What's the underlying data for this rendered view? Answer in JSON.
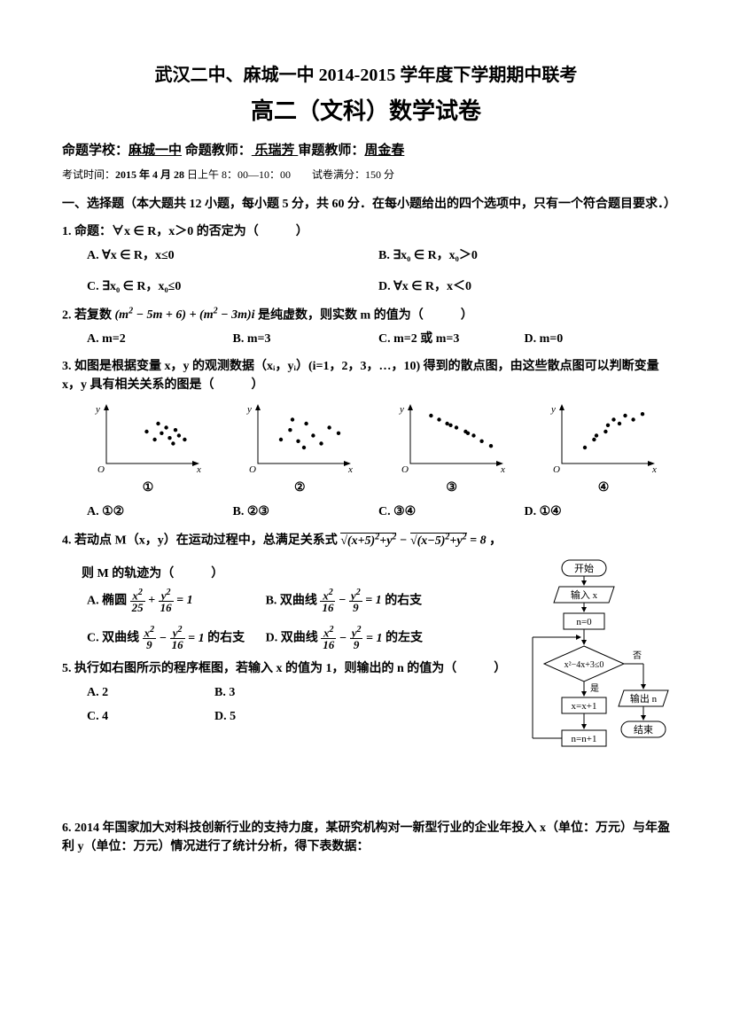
{
  "title_line1": "武汉二中、麻城一中 2014-2015 学年度下学期期中联考",
  "title_line2": "高二（文科）数学试卷",
  "meta": {
    "school_label": "命题学校：",
    "school": "麻城一中",
    "author_label": " 命题教师：",
    "author": " 乐瑞芳 ",
    "reviewer_label": "  审题教师：",
    "reviewer": "周金春"
  },
  "exam_info_prefix": "考试时间：",
  "exam_info_bold": "2015 年 4 月 28",
  "exam_info_rest": " 日上午 8：00—10：00　　试卷满分：150 分",
  "section1": "一、选择题（本大题共 12 小题，每小题 5 分，共 60 分．在每小题给出的四个选项中，只有一个符合题目要求．）",
  "q1": {
    "stem": "1.  命题：∀x ∈ R，x＞0 的否定为（　　　）",
    "A": "A.  ∀x ∈ R，x≤0",
    "B": "B.  ∃x₀ ∈ R，x₀＞0",
    "C": "C.  ∃x₀ ∈ R，x₀≤0",
    "D": "D.  ∀x ∈ R，x＜0"
  },
  "q2": {
    "stem_pre": "2.  若复数",
    "stem_post": "是纯虚数，则实数 m 的值为（　　　）",
    "A": "A. m=2",
    "B": "B. m=3",
    "C": "C. m=2 或 m=3",
    "D": "D. m=0"
  },
  "q3": {
    "stem": "3.  如图是根据变量 x，y 的观测数据（xᵢ，yᵢ）(i=1，2，3，…，10) 得到的散点图，由这些散点图可以判断变量 x，y 具有相关关系的图是（　　　）",
    "labels": [
      "①",
      "②",
      "③",
      "④"
    ],
    "A": "A. ①②",
    "B": "B. ②③",
    "C": "C. ③④",
    "D": "D. ①④",
    "scatter_colors": {
      "axis": "#000",
      "point": "#000"
    },
    "data1": [
      [
        35,
        40
      ],
      [
        42,
        30
      ],
      [
        48,
        38
      ],
      [
        55,
        32
      ],
      [
        58,
        25
      ],
      [
        63,
        35
      ],
      [
        68,
        30
      ],
      [
        45,
        50
      ],
      [
        52,
        45
      ],
      [
        60,
        42
      ]
    ],
    "data2": [
      [
        20,
        30
      ],
      [
        28,
        42
      ],
      [
        35,
        28
      ],
      [
        42,
        50
      ],
      [
        48,
        35
      ],
      [
        55,
        25
      ],
      [
        62,
        45
      ],
      [
        40,
        20
      ],
      [
        70,
        38
      ],
      [
        30,
        55
      ]
    ],
    "data3": [
      [
        20,
        20
      ],
      [
        30,
        35
      ],
      [
        38,
        40
      ],
      [
        45,
        55
      ],
      [
        50,
        50
      ],
      [
        55,
        60
      ],
      [
        62,
        55
      ],
      [
        70,
        62
      ],
      [
        40,
        48
      ],
      [
        28,
        30
      ]
    ],
    "data4": [
      [
        18,
        60
      ],
      [
        25,
        55
      ],
      [
        32,
        50
      ],
      [
        40,
        45
      ],
      [
        48,
        40
      ],
      [
        55,
        35
      ],
      [
        62,
        28
      ],
      [
        70,
        22
      ],
      [
        35,
        48
      ],
      [
        50,
        38
      ]
    ]
  },
  "q4": {
    "stem_pre": "4.  若动点 M（x，y）在运动过程中，总满足关系式",
    "stem_post": "，",
    "stem2": "则 M 的轨迹为（　　　）",
    "A_pre": "A.  椭圆 ",
    "B_pre": "B.  双曲线 ",
    "B_post": " 的右支",
    "C_pre": "C.  双曲线 ",
    "C_post": " 的右支  ",
    "D_pre": "D.  双曲线 ",
    "D_post": " 的左支"
  },
  "q5": {
    "stem": "5.  执行如右图所示的程序框图，若输入 x 的值为 1，则输出的 n 的值为（　　　）",
    "A": "A. 2",
    "B": "B. 3",
    "C": "C. 4",
    "D": "D. 5"
  },
  "q6": {
    "stem": "6. 2014 年国家加大对科技创新行业的支持力度，某研究机构对一新型行业的企业年投入 x（单位：万元）与年盈利 y（单位：万元）情况进行了统计分析，得下表数据："
  },
  "flowchart": {
    "start": "开始",
    "input": "输入 x",
    "init": "n=0",
    "cond": "x²−4x+3≤0",
    "yes": "是",
    "no": "否",
    "step1": "x=x+1",
    "step2": "n=n+1",
    "output": "输出 n",
    "end": "结束"
  }
}
